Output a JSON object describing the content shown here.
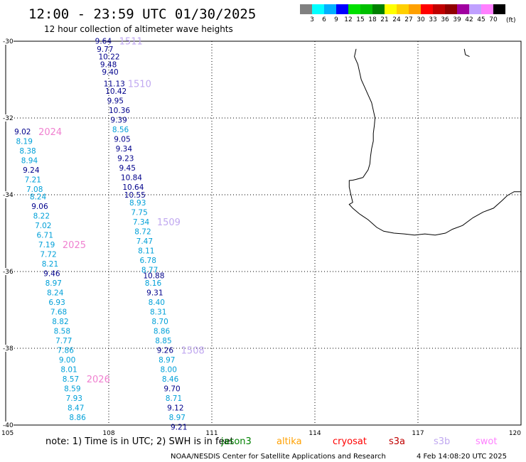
{
  "header": {
    "title": "12:00 - 23:59 UTC 01/30/2025",
    "subtitle": "12 hour collection of altimeter wave heights"
  },
  "colorbar": {
    "unit": "(ft)",
    "bins": [
      {
        "color": "#808080",
        "label": "3"
      },
      {
        "color": "#00ffff",
        "label": "6"
      },
      {
        "color": "#00b0ff",
        "label": "9"
      },
      {
        "color": "#0000ff",
        "label": "12"
      },
      {
        "color": "#00e000",
        "label": "15"
      },
      {
        "color": "#00c000",
        "label": "18"
      },
      {
        "color": "#008000",
        "label": "21"
      },
      {
        "color": "#ffff00",
        "label": "24"
      },
      {
        "color": "#ffd000",
        "label": "27"
      },
      {
        "color": "#ffa000",
        "label": "30"
      },
      {
        "color": "#ff0000",
        "label": "33"
      },
      {
        "color": "#c00000",
        "label": "36"
      },
      {
        "color": "#900000",
        "label": "39"
      },
      {
        "color": "#a000a0",
        "label": "42"
      },
      {
        "color": "#c0a0ff",
        "label": "45"
      },
      {
        "color": "#ff80ff",
        "label": "70"
      },
      {
        "color": "#000000",
        "label": ""
      }
    ]
  },
  "axes": {
    "lon_labels": [
      "105",
      "108",
      "111",
      "114",
      "117",
      "120"
    ],
    "lat_labels": [
      "-30",
      "-32",
      "-34",
      "-36",
      "-38",
      "-40"
    ],
    "grid": "dotted"
  },
  "colors": {
    "swh_dark": "#00008b",
    "swh_light": "#00a0d8",
    "time_label": "#c0a8f0",
    "time_label_2": "#f080d0",
    "coast": "#000000"
  },
  "tracks": [
    {
      "satellite": "s3b",
      "passes": [
        {
          "label": "1511",
          "label_lat": -30.0
        },
        {
          "label": "1510",
          "label_lat": -31.1
        },
        {
          "label": "1509",
          "label_lat": -34.7
        },
        {
          "label": "1508",
          "label_lat": -38.15
        }
      ],
      "points": [
        {
          "lon": 107.6,
          "lat": -29.99,
          "value": "9.64",
          "tone": "dark"
        },
        {
          "lon": 107.65,
          "lat": -30.2,
          "value": "9.77",
          "tone": "dark"
        },
        {
          "lon": 107.7,
          "lat": -30.4,
          "value": "10.22",
          "tone": "dark"
        },
        {
          "lon": 107.75,
          "lat": -30.6,
          "value": "9.48",
          "tone": "dark"
        },
        {
          "lon": 107.8,
          "lat": -30.8,
          "value": "9.40",
          "tone": "dark"
        },
        {
          "lon": 107.85,
          "lat": -31.1,
          "value": "11.13",
          "tone": "dark"
        },
        {
          "lon": 107.9,
          "lat": -31.3,
          "value": "10.42",
          "tone": "dark"
        },
        {
          "lon": 107.95,
          "lat": -31.55,
          "value": "9.95",
          "tone": "dark"
        },
        {
          "lon": 108.0,
          "lat": -31.8,
          "value": "10.36",
          "tone": "dark"
        },
        {
          "lon": 108.05,
          "lat": -32.05,
          "value": "9.39",
          "tone": "dark"
        },
        {
          "lon": 108.1,
          "lat": -32.3,
          "value": "8.56",
          "tone": "light"
        },
        {
          "lon": 108.15,
          "lat": -32.55,
          "value": "9.05",
          "tone": "dark"
        },
        {
          "lon": 108.2,
          "lat": -32.8,
          "value": "9.34",
          "tone": "dark"
        },
        {
          "lon": 108.25,
          "lat": -33.05,
          "value": "9.23",
          "tone": "dark"
        },
        {
          "lon": 108.3,
          "lat": -33.3,
          "value": "9.45",
          "tone": "dark"
        },
        {
          "lon": 108.35,
          "lat": -33.55,
          "value": "10.84",
          "tone": "dark"
        },
        {
          "lon": 108.4,
          "lat": -33.8,
          "value": "10.64",
          "tone": "dark"
        },
        {
          "lon": 108.45,
          "lat": -34.0,
          "value": "10.55",
          "tone": "dark"
        },
        {
          "lon": 108.6,
          "lat": -34.2,
          "value": "8.93",
          "tone": "light"
        },
        {
          "lon": 108.65,
          "lat": -34.45,
          "value": "7.75",
          "tone": "light"
        },
        {
          "lon": 108.7,
          "lat": -34.7,
          "value": "7.34",
          "tone": "light"
        },
        {
          "lon": 108.75,
          "lat": -34.95,
          "value": "8.72",
          "tone": "light"
        },
        {
          "lon": 108.8,
          "lat": -35.2,
          "value": "7.47",
          "tone": "light"
        },
        {
          "lon": 108.85,
          "lat": -35.45,
          "value": "8.11",
          "tone": "light"
        },
        {
          "lon": 108.9,
          "lat": -35.7,
          "value": "6.78",
          "tone": "light"
        },
        {
          "lon": 108.95,
          "lat": -35.95,
          "value": "8.77",
          "tone": "light"
        },
        {
          "lon": 109.0,
          "lat": -36.1,
          "value": "10.88",
          "tone": "dark"
        },
        {
          "lon": 109.05,
          "lat": -36.3,
          "value": "8.16",
          "tone": "light"
        },
        {
          "lon": 109.1,
          "lat": -36.55,
          "value": "9.31",
          "tone": "dark"
        },
        {
          "lon": 109.15,
          "lat": -36.8,
          "value": "8.40",
          "tone": "light"
        },
        {
          "lon": 109.2,
          "lat": -37.05,
          "value": "8.31",
          "tone": "light"
        },
        {
          "lon": 109.25,
          "lat": -37.3,
          "value": "8.70",
          "tone": "light"
        },
        {
          "lon": 109.3,
          "lat": -37.55,
          "value": "8.86",
          "tone": "light"
        },
        {
          "lon": 109.35,
          "lat": -37.8,
          "value": "8.85",
          "tone": "light"
        },
        {
          "lon": 109.4,
          "lat": -38.05,
          "value": "9.26",
          "tone": "dark"
        },
        {
          "lon": 109.45,
          "lat": -38.3,
          "value": "8.97",
          "tone": "light"
        },
        {
          "lon": 109.5,
          "lat": -38.55,
          "value": "8.00",
          "tone": "light"
        },
        {
          "lon": 109.55,
          "lat": -38.8,
          "value": "8.46",
          "tone": "light"
        },
        {
          "lon": 109.6,
          "lat": -39.05,
          "value": "9.70",
          "tone": "dark"
        },
        {
          "lon": 109.65,
          "lat": -39.3,
          "value": "8.71",
          "tone": "light"
        },
        {
          "lon": 109.7,
          "lat": -39.55,
          "value": "9.12",
          "tone": "dark"
        },
        {
          "lon": 109.75,
          "lat": -39.8,
          "value": "8.97",
          "tone": "light"
        },
        {
          "lon": 109.8,
          "lat": -40.05,
          "value": "9.21",
          "tone": "dark"
        }
      ]
    },
    {
      "satellite": "swot",
      "passes": [
        {
          "label": "2024",
          "label_lat": -32.35
        },
        {
          "label": "2025",
          "label_lat": -35.3
        },
        {
          "label": "2026",
          "label_lat": -38.8
        }
      ],
      "points": [
        {
          "lon": 105.25,
          "lat": -32.35,
          "value": "9.02",
          "tone": "dark"
        },
        {
          "lon": 105.3,
          "lat": -32.6,
          "value": "8.19",
          "tone": "light"
        },
        {
          "lon": 105.4,
          "lat": -32.85,
          "value": "8.38",
          "tone": "light"
        },
        {
          "lon": 105.45,
          "lat": -33.1,
          "value": "8.94",
          "tone": "light"
        },
        {
          "lon": 105.5,
          "lat": -33.35,
          "value": "9.24",
          "tone": "dark"
        },
        {
          "lon": 105.55,
          "lat": -33.6,
          "value": "7.21",
          "tone": "light"
        },
        {
          "lon": 105.6,
          "lat": -33.85,
          "value": "7.08",
          "tone": "light"
        },
        {
          "lon": 105.7,
          "lat": -34.05,
          "value": "8.24",
          "tone": "light"
        },
        {
          "lon": 105.75,
          "lat": -34.3,
          "value": "9.06",
          "tone": "dark"
        },
        {
          "lon": 105.8,
          "lat": -34.55,
          "value": "8.22",
          "tone": "light"
        },
        {
          "lon": 105.85,
          "lat": -34.8,
          "value": "7.02",
          "tone": "light"
        },
        {
          "lon": 105.9,
          "lat": -35.05,
          "value": "6.71",
          "tone": "light"
        },
        {
          "lon": 105.95,
          "lat": -35.3,
          "value": "7.19",
          "tone": "light"
        },
        {
          "lon": 106.0,
          "lat": -35.55,
          "value": "7.72",
          "tone": "light"
        },
        {
          "lon": 106.05,
          "lat": -35.8,
          "value": "8.21",
          "tone": "light"
        },
        {
          "lon": 106.1,
          "lat": -36.05,
          "value": "9.46",
          "tone": "dark"
        },
        {
          "lon": 106.15,
          "lat": -36.3,
          "value": "8.97",
          "tone": "light"
        },
        {
          "lon": 106.2,
          "lat": -36.55,
          "value": "8.24",
          "tone": "light"
        },
        {
          "lon": 106.25,
          "lat": -36.8,
          "value": "6.93",
          "tone": "light"
        },
        {
          "lon": 106.3,
          "lat": -37.05,
          "value": "7.68",
          "tone": "light"
        },
        {
          "lon": 106.35,
          "lat": -37.3,
          "value": "8.82",
          "tone": "light"
        },
        {
          "lon": 106.4,
          "lat": -37.55,
          "value": "8.58",
          "tone": "light"
        },
        {
          "lon": 106.45,
          "lat": -37.8,
          "value": "7.77",
          "tone": "light"
        },
        {
          "lon": 106.5,
          "lat": -38.05,
          "value": "7.86",
          "tone": "light"
        },
        {
          "lon": 106.55,
          "lat": -38.3,
          "value": "9.00",
          "tone": "light"
        },
        {
          "lon": 106.6,
          "lat": -38.55,
          "value": "8.01",
          "tone": "light"
        },
        {
          "lon": 106.65,
          "lat": -38.8,
          "value": "8.57",
          "tone": "light"
        },
        {
          "lon": 106.7,
          "lat": -39.05,
          "value": "8.59",
          "tone": "light"
        },
        {
          "lon": 106.75,
          "lat": -39.3,
          "value": "7.93",
          "tone": "light"
        },
        {
          "lon": 106.8,
          "lat": -39.55,
          "value": "8.47",
          "tone": "light"
        },
        {
          "lon": 106.85,
          "lat": -39.8,
          "value": "8.86",
          "tone": "light"
        }
      ]
    }
  ],
  "coastline": [
    [
      [
        115.2,
        -30.2
      ],
      [
        115.15,
        -30.4
      ],
      [
        115.25,
        -30.6
      ],
      [
        115.3,
        -30.8
      ],
      [
        115.35,
        -31.0
      ],
      [
        115.45,
        -31.2
      ],
      [
        115.55,
        -31.4
      ],
      [
        115.65,
        -31.6
      ],
      [
        115.7,
        -31.8
      ],
      [
        115.75,
        -32.0
      ],
      [
        115.73,
        -32.2
      ],
      [
        115.7,
        -32.4
      ],
      [
        115.7,
        -32.6
      ],
      [
        115.65,
        -32.8
      ],
      [
        115.62,
        -33.0
      ],
      [
        115.6,
        -33.2
      ],
      [
        115.55,
        -33.35
      ],
      [
        115.4,
        -33.55
      ],
      [
        115.2,
        -33.6
      ],
      [
        115.1,
        -33.62
      ],
      [
        115.0,
        -33.63
      ],
      [
        115.0,
        -33.8
      ],
      [
        115.05,
        -34.0
      ],
      [
        115.1,
        -34.2
      ],
      [
        115.0,
        -34.25
      ],
      [
        115.1,
        -34.35
      ],
      [
        115.3,
        -34.5
      ],
      [
        115.55,
        -34.65
      ],
      [
        115.8,
        -34.85
      ],
      [
        116.0,
        -34.95
      ],
      [
        116.3,
        -35.0
      ],
      [
        116.6,
        -35.02
      ],
      [
        116.9,
        -35.05
      ],
      [
        117.2,
        -35.02
      ],
      [
        117.5,
        -35.05
      ],
      [
        117.8,
        -35.0
      ],
      [
        118.0,
        -34.9
      ],
      [
        118.3,
        -34.8
      ],
      [
        118.6,
        -34.6
      ],
      [
        118.9,
        -34.45
      ],
      [
        119.2,
        -34.35
      ],
      [
        119.45,
        -34.15
      ],
      [
        119.6,
        -34.02
      ],
      [
        119.8,
        -33.92
      ],
      [
        120.0,
        -33.92
      ]
    ],
    [
      [
        118.35,
        -30.2
      ],
      [
        118.38,
        -30.35
      ],
      [
        118.5,
        -30.4
      ]
    ]
  ],
  "legend": {
    "note": "note: 1) Time is in UTC; 2) SWH is in feet",
    "satellites": [
      {
        "name": "jason3",
        "color": "#008000"
      },
      {
        "name": "altika",
        "color": "#ffa000"
      },
      {
        "name": "cryosat",
        "color": "#ff0000"
      },
      {
        "name": "s3a",
        "color": "#c00000"
      },
      {
        "name": "s3b",
        "color": "#c0a8f0"
      },
      {
        "name": "swot",
        "color": "#ff80ff"
      }
    ]
  },
  "footer": {
    "credit": "NOAA/NESDIS Center for Satellite Applications and Research",
    "timestamp": "4 Feb 14:08:20 UTC 2025"
  }
}
